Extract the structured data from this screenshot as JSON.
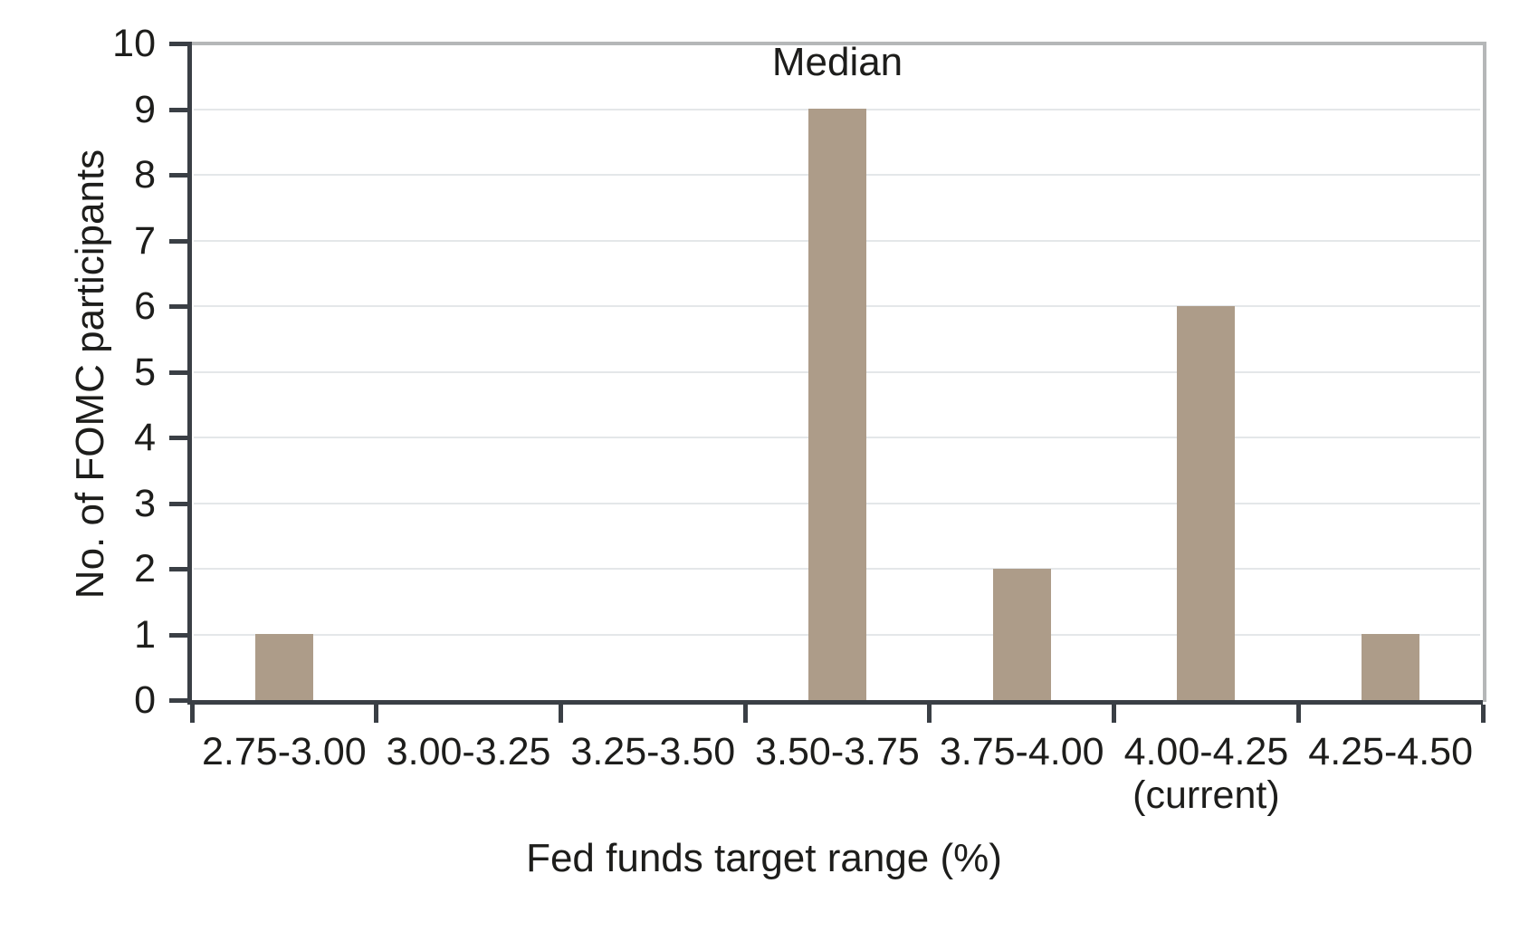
{
  "figure": {
    "background": "#ffffff"
  },
  "chart_data": {
    "type": "bar",
    "title": "",
    "categories": [
      "2.75-3.00",
      "3.00-3.25",
      "3.25-3.50",
      "3.50-3.75",
      "3.75-4.00",
      "4.00-4.25",
      "4.25-4.50"
    ],
    "category_sublabels": [
      "",
      "",
      "",
      "",
      "",
      "(current)",
      ""
    ],
    "values": [
      1,
      0,
      0,
      9,
      2,
      6,
      1
    ],
    "xlabel": "Fed funds target range (%)",
    "ylabel": "No. of FOMC participants",
    "ylim": [
      0,
      10
    ],
    "yticks": [
      0,
      1,
      2,
      3,
      4,
      5,
      6,
      7,
      8,
      9,
      10
    ],
    "grid": "horizontal",
    "legend": "none",
    "annotations": [
      {
        "text": "Median",
        "category": "3.50-3.75",
        "category_index": 3,
        "position": "above-bar"
      }
    ],
    "colors": {
      "bar": "#ad9c89",
      "axis": "#3a3f45",
      "frame": "#b5b7b8",
      "gridline": "#e4e7e9",
      "text": "#1d1d1b"
    }
  }
}
